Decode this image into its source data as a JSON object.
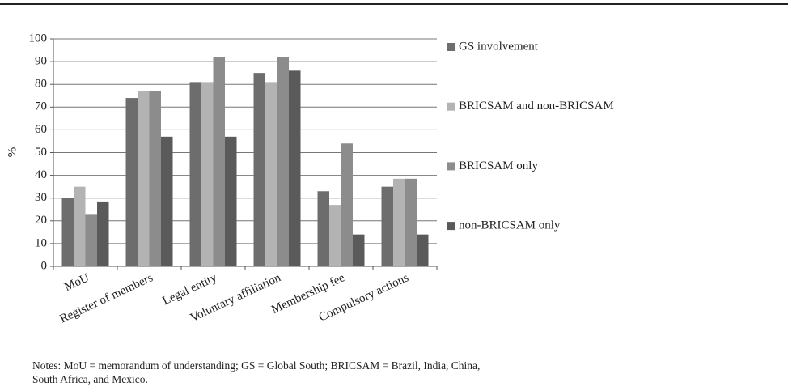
{
  "chart_data": {
    "type": "bar",
    "y_label": "%",
    "categories": [
      "MoU",
      "Register of members",
      "Legal entity",
      "Voluntary affiliation",
      "Membership fee",
      "Compulsory actions"
    ],
    "series": [
      {
        "name": "GS involvement",
        "color": "#6d6d6d",
        "values": [
          30,
          74,
          81,
          85,
          33,
          35
        ]
      },
      {
        "name": "BRICSAM and non-BRICSAM",
        "color": "#b3b3b3",
        "values": [
          35,
          77,
          81,
          81,
          27,
          38.5
        ]
      },
      {
        "name": "BRICSAM only",
        "color": "#8c8c8c",
        "values": [
          23,
          77,
          92,
          92,
          54,
          38.5
        ]
      },
      {
        "name": "non-BRICSAM only",
        "color": "#5a5a5a",
        "values": [
          28.5,
          57,
          57,
          86,
          14,
          14
        ]
      }
    ],
    "ylim": [
      0,
      100
    ],
    "yticks": [
      0,
      10,
      20,
      30,
      40,
      50,
      60,
      70,
      80,
      90,
      100
    ],
    "grid": true,
    "legend": "right",
    "notes": [
      "Notes: MoU = memorandum of understanding; GS = Global South; BRICSAM = Brazil, India, China,",
      "South Africa, and Mexico."
    ]
  }
}
